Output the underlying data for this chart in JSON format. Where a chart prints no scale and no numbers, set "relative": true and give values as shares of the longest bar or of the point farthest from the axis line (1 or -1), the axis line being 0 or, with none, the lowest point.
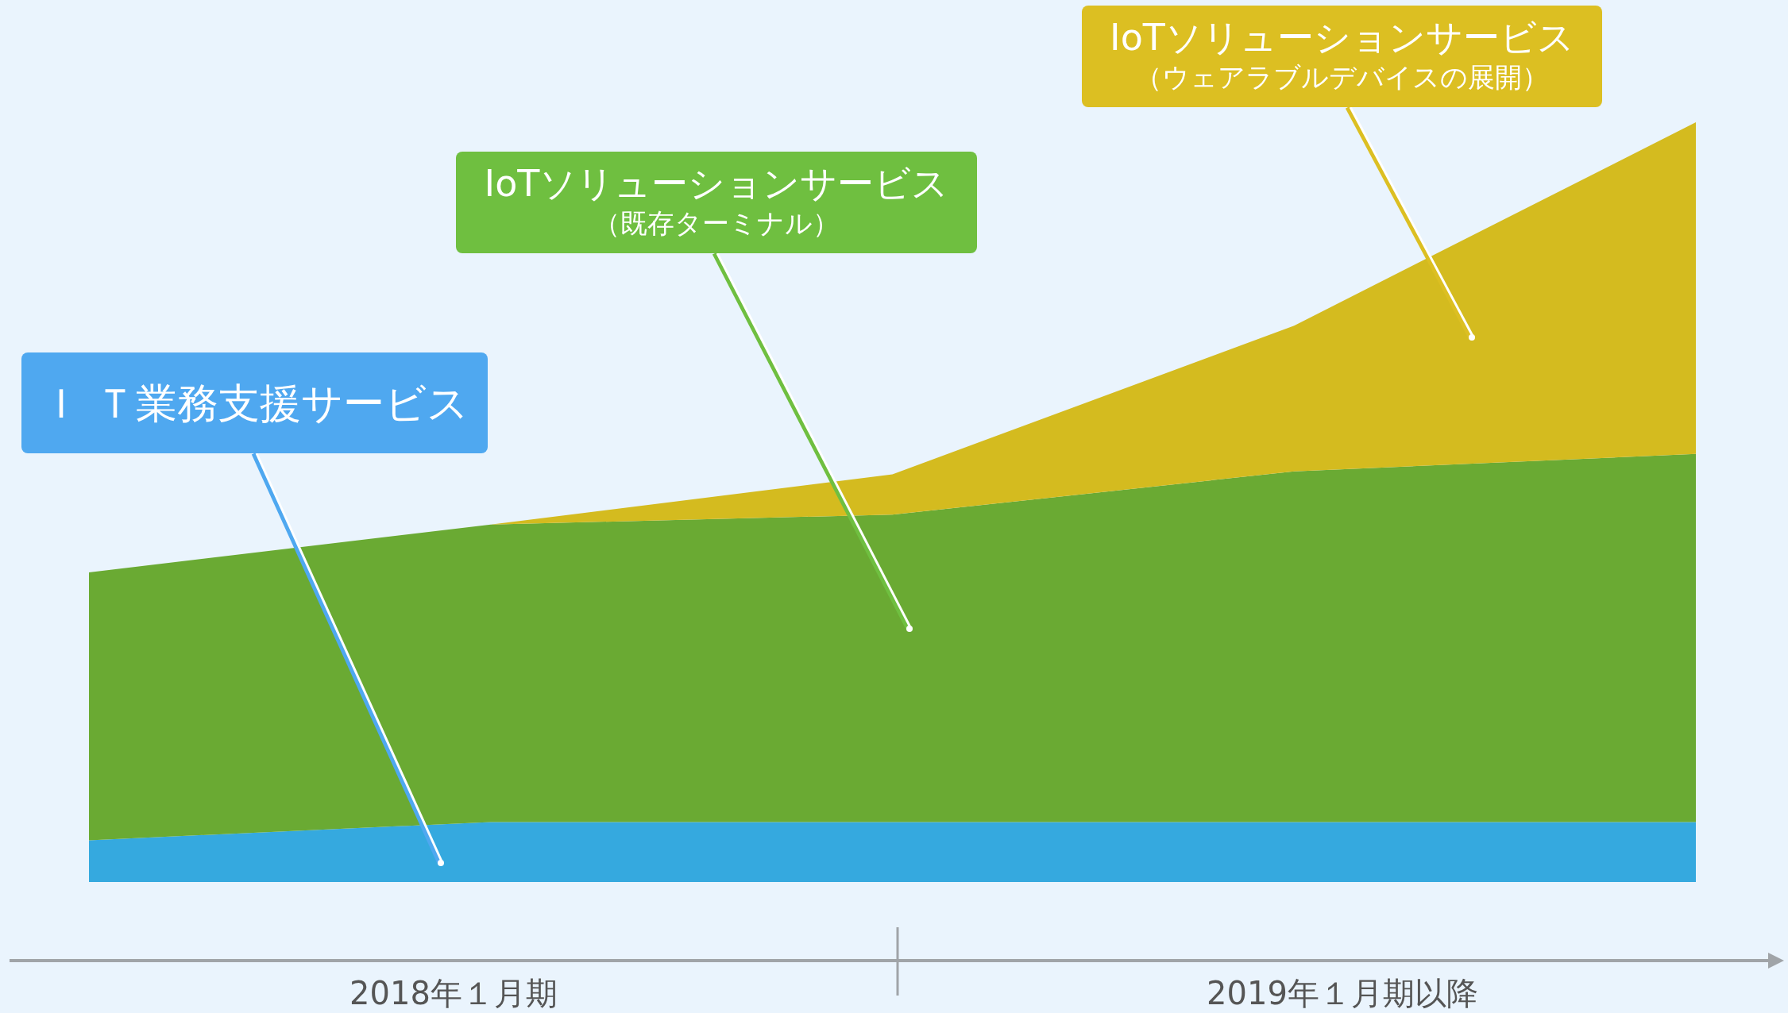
{
  "chart_data": {
    "type": "area",
    "stacked": true,
    "relative": true,
    "legend": false,
    "categories": [
      null,
      null,
      null,
      null,
      null
    ],
    "series": [
      {
        "name": "Ｉ Ｔ業務支援サービス",
        "color": "#35a9df",
        "values": [
          0.054,
          0.078,
          0.078,
          0.078,
          0.078
        ]
      },
      {
        "name": "IoTソリューションサービス（既存ターミナル）",
        "color": "#6aaa33",
        "values": [
          0.353,
          0.392,
          0.405,
          0.462,
          0.485
        ]
      },
      {
        "name": "IoTソリューションサービス（ウェアラブルデバイスの展開）",
        "color": "#d4bb1f",
        "values": [
          0,
          0,
          0.053,
          0.192,
          0.437
        ]
      }
    ],
    "annotations": [
      "2018年１月期",
      "2019年１月期以降"
    ]
  }
}
